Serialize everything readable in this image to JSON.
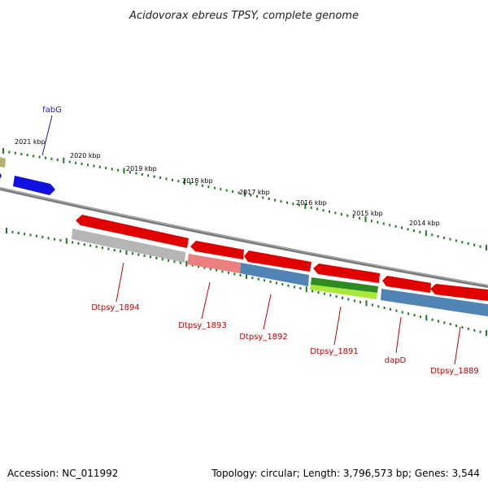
{
  "title": "Acidovorax ebreus TPSY, complete genome",
  "accession": "Accession: NC_011992",
  "topology": "Topology: circular; Length: 3,796,573 bp; Genes: 3,544",
  "kbp_labels": [
    "2021 kbp",
    "2020 kbp",
    "2019 kbp",
    "2018 kbp",
    "2017 kbp",
    "2016 kbp",
    "2015 kbp",
    "2014 kbp"
  ],
  "gene_labels": {
    "fabG": "fabG",
    "Dtpsy_1894": "Dtpsy_1894",
    "Dtpsy_1893": "Dtpsy_1893",
    "Dtpsy_1892": "Dtpsy_1892",
    "Dtpsy_1891": "Dtpsy_1891",
    "dapD": "dapD",
    "Dtpsy_1889": "Dtpsy_1889"
  },
  "colors": {
    "forward_label": "#1a1aa6",
    "reverse_label": "#c00000",
    "backbone": "#808080",
    "tick": "#1f7a1f",
    "red_gene": "#e00000",
    "grey_gene": "#b5b5b5",
    "pink_gene": "#ec7f7f",
    "steel_gene": "#4f84b4",
    "green_gene": "#2e8b20",
    "lime_gene": "#a8e83a",
    "blue_gene": "#1010e0",
    "khaki_gene": "#b5b075"
  }
}
